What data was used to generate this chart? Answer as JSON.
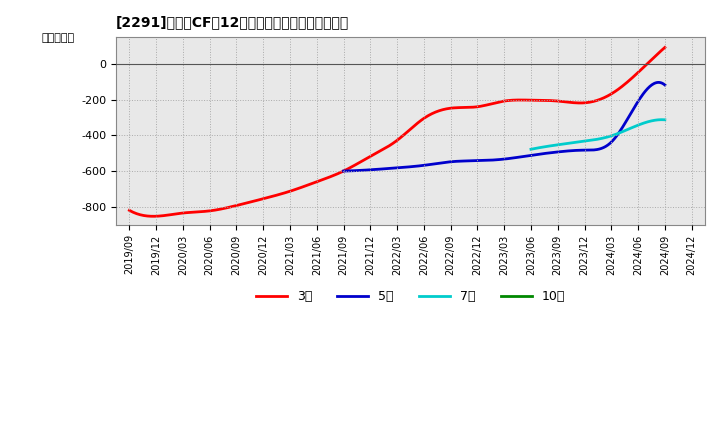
{
  "title": "[2291]　投賄CFだ12か月移動合計の平均値の推移",
  "ylabel": "（百万円）",
  "background_color": "#ffffff",
  "grid_color": "#aaaaaa",
  "plot_bg_color": "#e8e8e8",
  "ylim": [
    -900,
    150
  ],
  "yticks": [
    -800,
    -600,
    -400,
    -200,
    0
  ],
  "series": {
    "3year": {
      "color": "#ff0000",
      "label": "3年",
      "points": [
        [
          "2019/09",
          -820
        ],
        [
          "2019/12",
          -853
        ],
        [
          "2020/03",
          -835
        ],
        [
          "2020/06",
          -823
        ],
        [
          "2020/09",
          -793
        ],
        [
          "2020/12",
          -755
        ],
        [
          "2021/03",
          -713
        ],
        [
          "2021/06",
          -660
        ],
        [
          "2021/09",
          -600
        ],
        [
          "2021/12",
          -518
        ],
        [
          "2022/03",
          -428
        ],
        [
          "2022/06",
          -305
        ],
        [
          "2022/09",
          -248
        ],
        [
          "2022/12",
          -240
        ],
        [
          "2023/03",
          -208
        ],
        [
          "2023/06",
          -203
        ],
        [
          "2023/09",
          -208
        ],
        [
          "2023/12",
          -218
        ],
        [
          "2024/03",
          -168
        ],
        [
          "2024/06",
          -48
        ],
        [
          "2024/09",
          92
        ]
      ]
    },
    "5year": {
      "color": "#0000cc",
      "label": "5年",
      "points": [
        [
          "2021/09",
          -600
        ],
        [
          "2021/12",
          -593
        ],
        [
          "2022/03",
          -582
        ],
        [
          "2022/06",
          -568
        ],
        [
          "2022/09",
          -548
        ],
        [
          "2022/12",
          -542
        ],
        [
          "2023/03",
          -533
        ],
        [
          "2023/06",
          -512
        ],
        [
          "2023/09",
          -493
        ],
        [
          "2023/12",
          -483
        ],
        [
          "2024/03",
          -438
        ],
        [
          "2024/06",
          -210
        ],
        [
          "2024/09",
          -118
        ]
      ]
    },
    "7year": {
      "color": "#00cccc",
      "label": "7年",
      "points": [
        [
          "2023/06",
          -478
        ],
        [
          "2023/09",
          -453
        ],
        [
          "2023/12",
          -433
        ],
        [
          "2024/03",
          -403
        ],
        [
          "2024/06",
          -343
        ],
        [
          "2024/09",
          -313
        ]
      ]
    },
    "10year": {
      "color": "#008800",
      "label": "10年",
      "points": []
    }
  },
  "xtick_labels": [
    "2019/09",
    "2019/12",
    "2020/03",
    "2020/06",
    "2020/09",
    "2020/12",
    "2021/03",
    "2021/06",
    "2021/09",
    "2021/12",
    "2022/03",
    "2022/06",
    "2022/09",
    "2022/12",
    "2023/03",
    "2023/06",
    "2023/09",
    "2023/12",
    "2024/03",
    "2024/06",
    "2024/09",
    "2024/12"
  ]
}
